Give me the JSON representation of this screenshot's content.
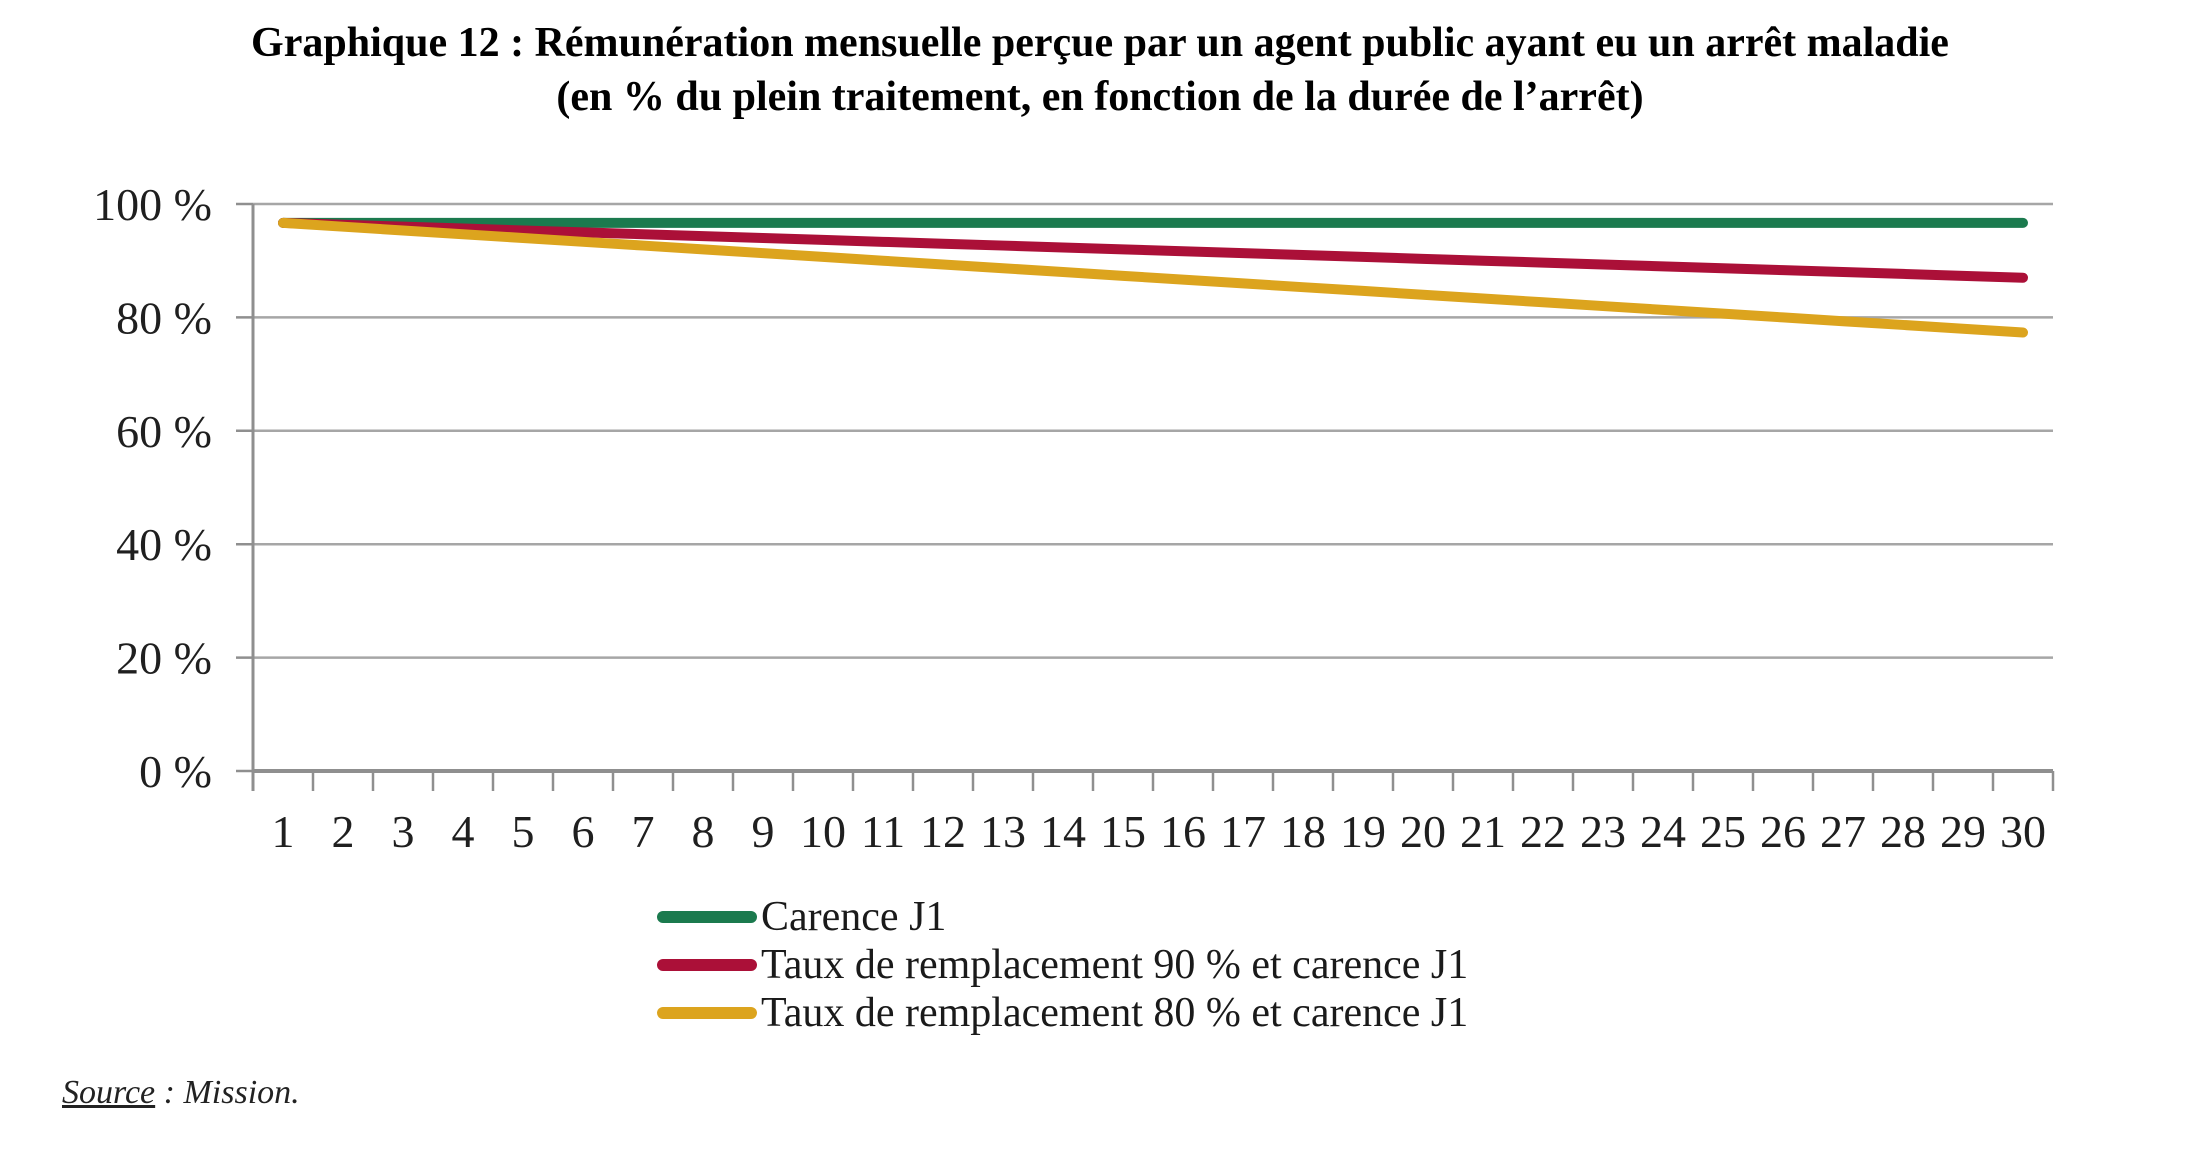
{
  "title": {
    "line1": "Graphique 12 : Rémunération mensuelle perçue par un agent public ayant eu un arrêt maladie",
    "line2": "(en % du plein traitement, en fonction de la durée de l’arrêt)"
  },
  "source": {
    "label": "Source",
    "rest": " : Mission."
  },
  "colors": {
    "grid": "#a6a6a6",
    "axis": "#8f8f8f",
    "tick_text": "#1f1f1f"
  },
  "chart_data": {
    "type": "line",
    "x": [
      1,
      2,
      3,
      4,
      5,
      6,
      7,
      8,
      9,
      10,
      11,
      12,
      13,
      14,
      15,
      16,
      17,
      18,
      19,
      20,
      21,
      22,
      23,
      24,
      25,
      26,
      27,
      28,
      29,
      30
    ],
    "series": [
      {
        "name": "Carence J1",
        "color": "#1b7a4e",
        "values": [
          96.67,
          96.67,
          96.67,
          96.67,
          96.67,
          96.67,
          96.67,
          96.67,
          96.67,
          96.67,
          96.67,
          96.67,
          96.67,
          96.67,
          96.67,
          96.67,
          96.67,
          96.67,
          96.67,
          96.67,
          96.67,
          96.67,
          96.67,
          96.67,
          96.67,
          96.67,
          96.67,
          96.67,
          96.67,
          96.67
        ]
      },
      {
        "name": "Taux de remplacement 90 % et carence J1",
        "color": "#ab1038",
        "values": [
          96.67,
          96.33,
          96.0,
          95.67,
          95.33,
          95.0,
          94.67,
          94.33,
          94.0,
          93.67,
          93.33,
          93.0,
          92.67,
          92.33,
          92.0,
          91.67,
          91.33,
          91.0,
          90.67,
          90.33,
          90.0,
          89.67,
          89.33,
          89.0,
          88.67,
          88.33,
          88.0,
          87.67,
          87.33,
          87.0
        ]
      },
      {
        "name": "Taux de remplacement 80 % et carence J1",
        "color": "#dca41e",
        "values": [
          96.67,
          96.0,
          95.33,
          94.67,
          94.0,
          93.33,
          92.67,
          92.0,
          91.33,
          90.67,
          90.0,
          89.33,
          88.67,
          88.0,
          87.33,
          86.67,
          86.0,
          85.33,
          84.67,
          84.0,
          83.33,
          82.67,
          82.0,
          81.33,
          80.67,
          80.0,
          79.33,
          78.67,
          78.0,
          77.33
        ]
      }
    ],
    "ylim": [
      0,
      100
    ],
    "yticks": [
      0,
      20,
      40,
      60,
      80,
      100
    ],
    "ytick_labels": [
      "0 %",
      "20 %",
      "40 %",
      "60 %",
      "80 %",
      "100 %"
    ],
    "xlabel": "",
    "ylabel": "",
    "grid": true,
    "legend_position": "bottom-left"
  }
}
